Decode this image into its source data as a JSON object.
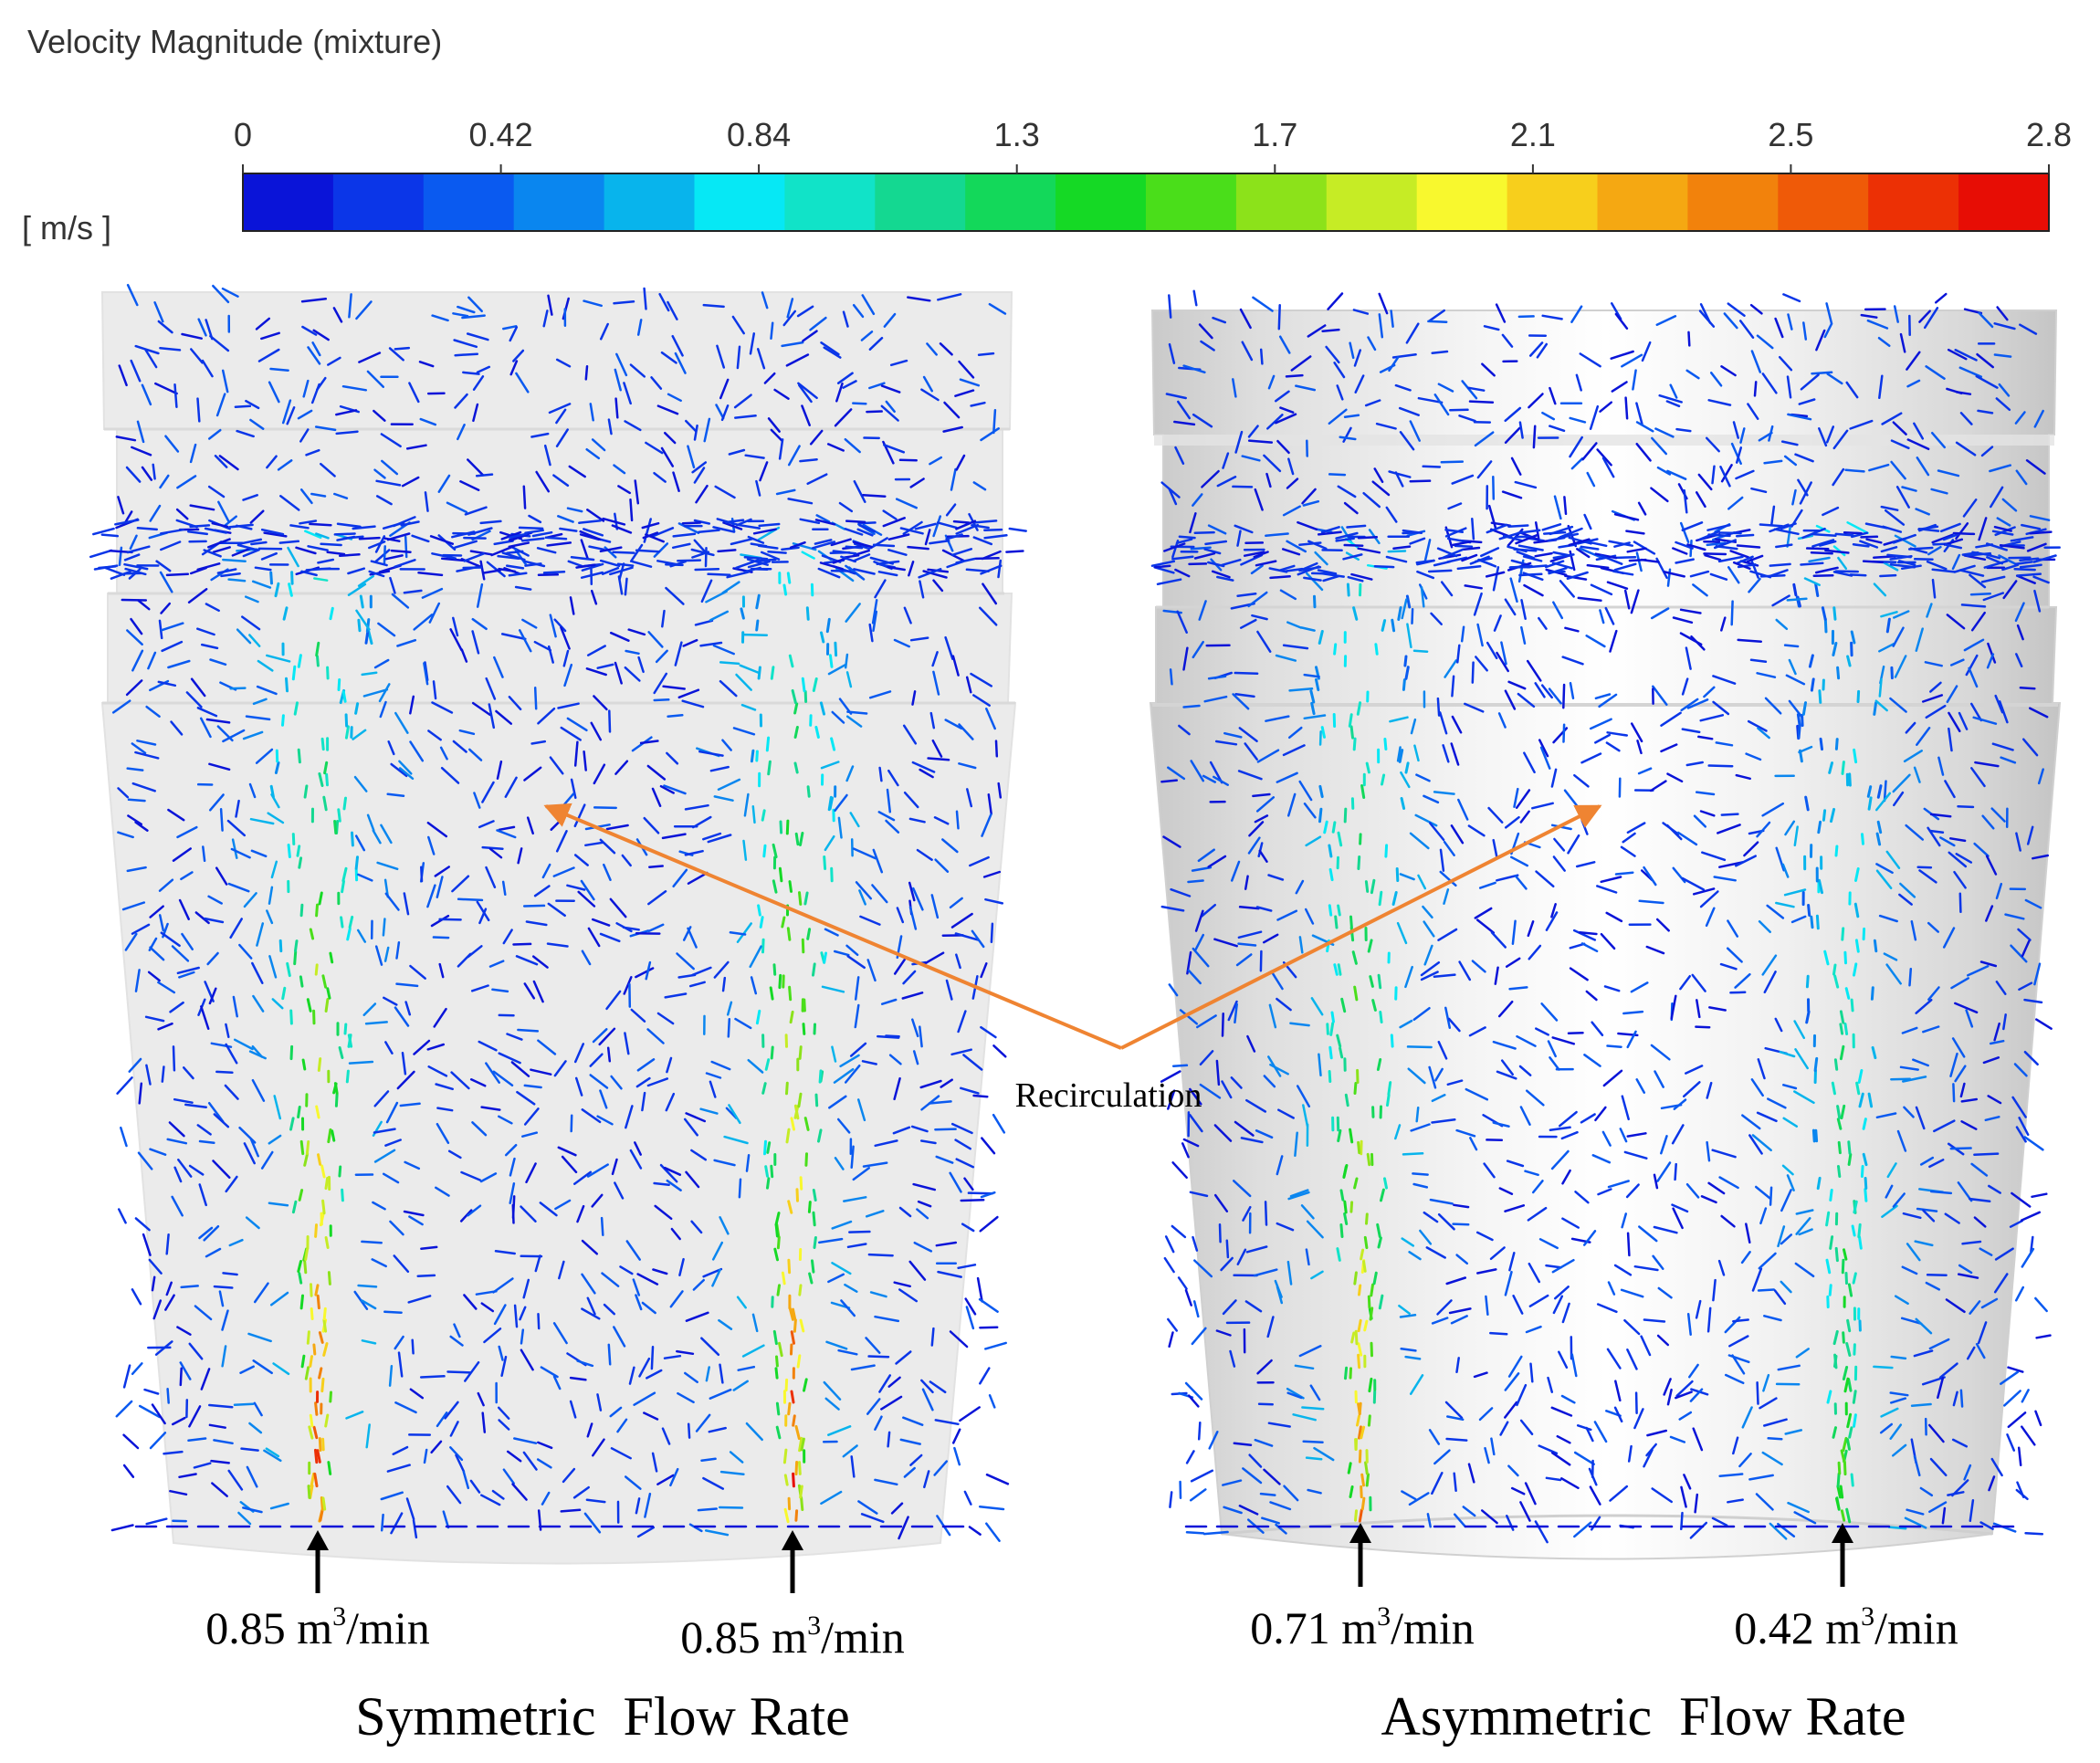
{
  "legend": {
    "title": "Velocity Magnitude (mixture)",
    "unit": "[ m/s ]",
    "ticks": [
      "0",
      "0.42",
      "0.84",
      "1.3",
      "1.7",
      "2.1",
      "2.5",
      "2.8"
    ],
    "min": 0,
    "max": 2.8,
    "bands": 20,
    "colors": [
      "#0a14d8",
      "#0b36e8",
      "#0a5af0",
      "#0a86ef",
      "#08b4ec",
      "#06e8f5",
      "#11e3c8",
      "#14d891",
      "#13d85a",
      "#15d925",
      "#4ade1a",
      "#8ce21a",
      "#c6ec25",
      "#f8f82e",
      "#f7cf1c",
      "#f5a812",
      "#f2820c",
      "#ef5a08",
      "#ec3005",
      "#e70d05"
    ]
  },
  "annotation": {
    "label": "Recirculation",
    "arrow_color": "#ef8432"
  },
  "panels": [
    {
      "id": "symmetric",
      "caption": "Symmetric  Flow Rate",
      "inlets": [
        {
          "value": "0.85",
          "unit_base": "m",
          "unit_sup": "3",
          "unit_rest": "/min",
          "flow": 0.85
        },
        {
          "value": "0.85",
          "unit_base": "m",
          "unit_sup": "3",
          "unit_rest": "/min",
          "flow": 0.85
        }
      ]
    },
    {
      "id": "asymmetric",
      "caption": "Asymmetric  Flow Rate",
      "inlets": [
        {
          "value": "0.71",
          "unit_base": "m",
          "unit_sup": "3",
          "unit_rest": "/min",
          "flow": 0.71
        },
        {
          "value": "0.42",
          "unit_base": "m",
          "unit_sup": "3",
          "unit_rest": "/min",
          "flow": 0.42
        }
      ]
    }
  ]
}
